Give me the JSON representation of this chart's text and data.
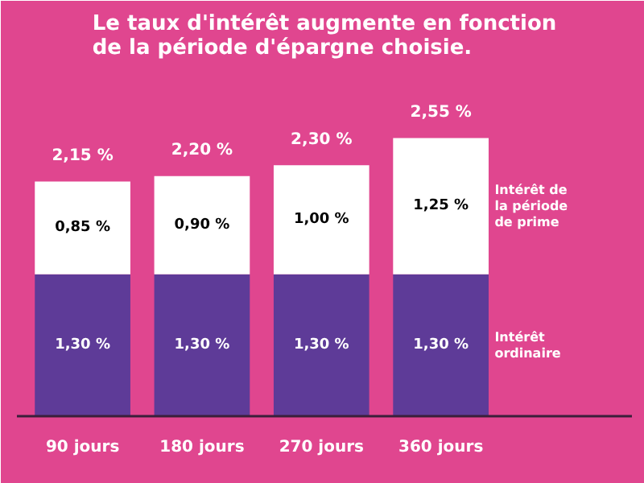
{
  "chart_data": {
    "type": "bar",
    "stacked": true,
    "title": "Le taux d'intérêt augmente en fonction de la période d'épargne choisie.",
    "categories": [
      "90 jours",
      "180 jours",
      "270 jours",
      "360 jours"
    ],
    "series": [
      {
        "name": "Intérêt ordinaire",
        "color": "#5e3b98",
        "values": [
          1.3,
          1.3,
          1.3,
          1.3
        ],
        "value_labels": [
          "1,30 %",
          "1,30 %",
          "1,30 %",
          "1,30 %"
        ]
      },
      {
        "name": "Intérêt de la période de prime",
        "color": "#ffffff",
        "values": [
          0.85,
          0.9,
          1.0,
          1.25
        ],
        "value_labels": [
          "0,85 %",
          "0,90 %",
          "1,00 %",
          "1,25 %"
        ]
      }
    ],
    "totals": [
      "2,15 %",
      "2,20 %",
      "2,30 %",
      "2,55 %"
    ],
    "legend": "right",
    "grid": false
  }
}
